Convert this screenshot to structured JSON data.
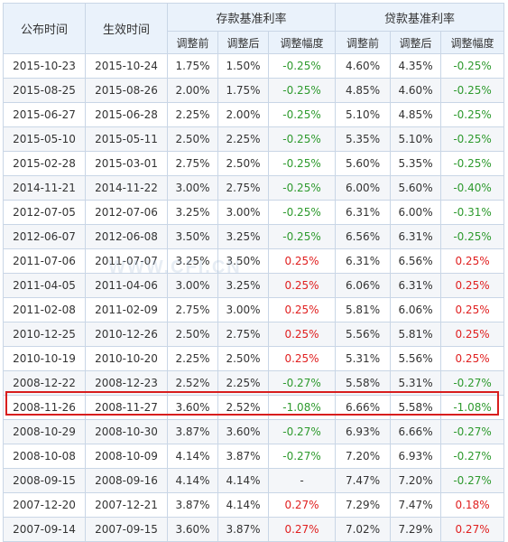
{
  "headers": {
    "announce_date": "公布时间",
    "effective_date": "生效时间",
    "deposit_group": "存款基准利率",
    "loan_group": "贷款基准利率",
    "before": "调整前",
    "after": "调整后",
    "change": "调整幅度"
  },
  "watermark": "WWW.CFI.CN",
  "highlighted_row_index": 14,
  "colors": {
    "decrease": "#2e9a2e",
    "increase": "#e02020",
    "highlight_border": "#d81e1e"
  },
  "rows": [
    {
      "announce": "2015-10-23",
      "effective": "2015-10-24",
      "dep_before": "1.75%",
      "dep_after": "1.50%",
      "dep_change": "-0.25%",
      "loan_before": "4.60%",
      "loan_after": "4.35%",
      "loan_change": "-0.25%"
    },
    {
      "announce": "2015-08-25",
      "effective": "2015-08-26",
      "dep_before": "2.00%",
      "dep_after": "1.75%",
      "dep_change": "-0.25%",
      "loan_before": "4.85%",
      "loan_after": "4.60%",
      "loan_change": "-0.25%"
    },
    {
      "announce": "2015-06-27",
      "effective": "2015-06-28",
      "dep_before": "2.25%",
      "dep_after": "2.00%",
      "dep_change": "-0.25%",
      "loan_before": "5.10%",
      "loan_after": "4.85%",
      "loan_change": "-0.25%"
    },
    {
      "announce": "2015-05-10",
      "effective": "2015-05-11",
      "dep_before": "2.50%",
      "dep_after": "2.25%",
      "dep_change": "-0.25%",
      "loan_before": "5.35%",
      "loan_after": "5.10%",
      "loan_change": "-0.25%"
    },
    {
      "announce": "2015-02-28",
      "effective": "2015-03-01",
      "dep_before": "2.75%",
      "dep_after": "2.50%",
      "dep_change": "-0.25%",
      "loan_before": "5.60%",
      "loan_after": "5.35%",
      "loan_change": "-0.25%"
    },
    {
      "announce": "2014-11-21",
      "effective": "2014-11-22",
      "dep_before": "3.00%",
      "dep_after": "2.75%",
      "dep_change": "-0.25%",
      "loan_before": "6.00%",
      "loan_after": "5.60%",
      "loan_change": "-0.40%"
    },
    {
      "announce": "2012-07-05",
      "effective": "2012-07-06",
      "dep_before": "3.25%",
      "dep_after": "3.00%",
      "dep_change": "-0.25%",
      "loan_before": "6.31%",
      "loan_after": "6.00%",
      "loan_change": "-0.31%"
    },
    {
      "announce": "2012-06-07",
      "effective": "2012-06-08",
      "dep_before": "3.50%",
      "dep_after": "3.25%",
      "dep_change": "-0.25%",
      "loan_before": "6.56%",
      "loan_after": "6.31%",
      "loan_change": "-0.25%"
    },
    {
      "announce": "2011-07-06",
      "effective": "2011-07-07",
      "dep_before": "3.25%",
      "dep_after": "3.50%",
      "dep_change": "0.25%",
      "loan_before": "6.31%",
      "loan_after": "6.56%",
      "loan_change": "0.25%"
    },
    {
      "announce": "2011-04-05",
      "effective": "2011-04-06",
      "dep_before": "3.00%",
      "dep_after": "3.25%",
      "dep_change": "0.25%",
      "loan_before": "6.06%",
      "loan_after": "6.31%",
      "loan_change": "0.25%"
    },
    {
      "announce": "2011-02-08",
      "effective": "2011-02-09",
      "dep_before": "2.75%",
      "dep_after": "3.00%",
      "dep_change": "0.25%",
      "loan_before": "5.81%",
      "loan_after": "6.06%",
      "loan_change": "0.25%"
    },
    {
      "announce": "2010-12-25",
      "effective": "2010-12-26",
      "dep_before": "2.50%",
      "dep_after": "2.75%",
      "dep_change": "0.25%",
      "loan_before": "5.56%",
      "loan_after": "5.81%",
      "loan_change": "0.25%"
    },
    {
      "announce": "2010-10-19",
      "effective": "2010-10-20",
      "dep_before": "2.25%",
      "dep_after": "2.50%",
      "dep_change": "0.25%",
      "loan_before": "5.31%",
      "loan_after": "5.56%",
      "loan_change": "0.25%"
    },
    {
      "announce": "2008-12-22",
      "effective": "2008-12-23",
      "dep_before": "2.52%",
      "dep_after": "2.25%",
      "dep_change": "-0.27%",
      "loan_before": "5.58%",
      "loan_after": "5.31%",
      "loan_change": "-0.27%"
    },
    {
      "announce": "2008-11-26",
      "effective": "2008-11-27",
      "dep_before": "3.60%",
      "dep_after": "2.52%",
      "dep_change": "-1.08%",
      "loan_before": "6.66%",
      "loan_after": "5.58%",
      "loan_change": "-1.08%"
    },
    {
      "announce": "2008-10-29",
      "effective": "2008-10-30",
      "dep_before": "3.87%",
      "dep_after": "3.60%",
      "dep_change": "-0.27%",
      "loan_before": "6.93%",
      "loan_after": "6.66%",
      "loan_change": "-0.27%"
    },
    {
      "announce": "2008-10-08",
      "effective": "2008-10-09",
      "dep_before": "4.14%",
      "dep_after": "3.87%",
      "dep_change": "-0.27%",
      "loan_before": "7.20%",
      "loan_after": "6.93%",
      "loan_change": "-0.27%"
    },
    {
      "announce": "2008-09-15",
      "effective": "2008-09-16",
      "dep_before": "4.14%",
      "dep_after": "4.14%",
      "dep_change": "-",
      "loan_before": "7.47%",
      "loan_after": "7.20%",
      "loan_change": "-0.27%"
    },
    {
      "announce": "2007-12-20",
      "effective": "2007-12-21",
      "dep_before": "3.87%",
      "dep_after": "4.14%",
      "dep_change": "0.27%",
      "loan_before": "7.29%",
      "loan_after": "7.47%",
      "loan_change": "0.18%"
    },
    {
      "announce": "2007-09-14",
      "effective": "2007-09-15",
      "dep_before": "3.60%",
      "dep_after": "3.87%",
      "dep_change": "0.27%",
      "loan_before": "7.02%",
      "loan_after": "7.29%",
      "loan_change": "0.27%"
    }
  ]
}
